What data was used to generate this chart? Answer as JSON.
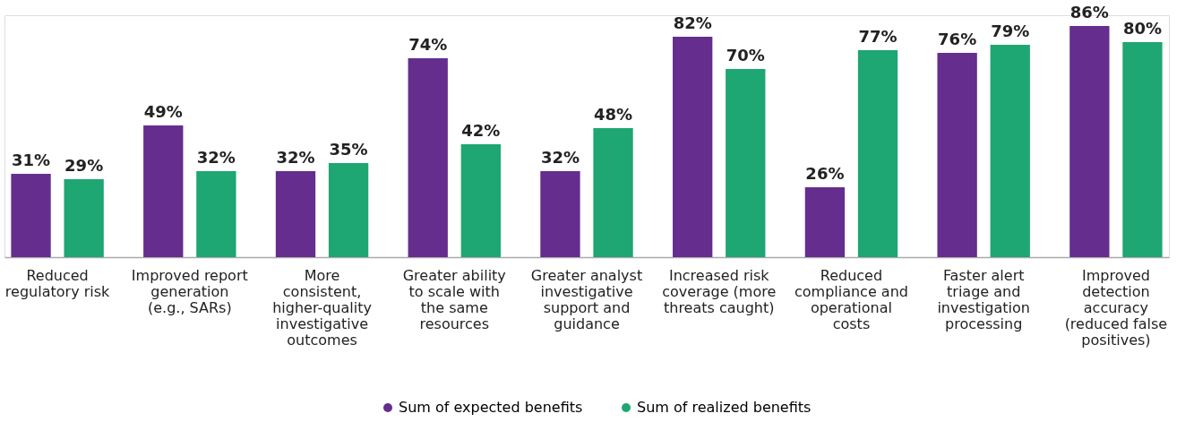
{
  "chart_data": {
    "type": "bar",
    "categories": [
      "Reduced regulatory risk",
      "Improved report generation (e.g., SARs)",
      "More consistent, higher-quality investigative outcomes",
      "Greater ability to scale with the same resources",
      "Greater analyst investigative support and guidance",
      "Increased risk coverage (more threats caught)",
      "Reduced compliance and operational costs",
      "Faster alert triage and investigation processing",
      "Improved detection accuracy (reduced false positives)"
    ],
    "series": [
      {
        "name": "Sum of expected benefits",
        "color": "#652d8e",
        "values": [
          31,
          49,
          32,
          74,
          32,
          82,
          26,
          76,
          86
        ],
        "value_labels": [
          "31%",
          "49%",
          "32%",
          "74%",
          "32%",
          "82%",
          "26%",
          "76%",
          "86%"
        ]
      },
      {
        "name": "Sum of realized benefits",
        "color": "#1ea673",
        "values": [
          29,
          32,
          35,
          42,
          48,
          70,
          77,
          79,
          80
        ],
        "value_labels": [
          "29%",
          "32%",
          "35%",
          "42%",
          "48%",
          "70%",
          "77%",
          "79%",
          "80%"
        ]
      }
    ],
    "legend": "bottom",
    "grid": false
  }
}
